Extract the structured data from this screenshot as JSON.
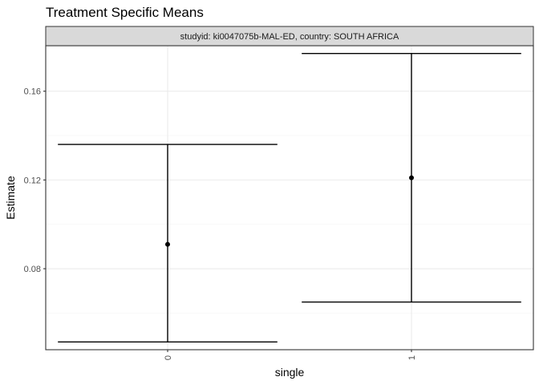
{
  "chart_data": {
    "type": "errorbar",
    "title": "Treatment Specific Means",
    "facet_label": "studyid: ki0047075b-MAL-ED, country: SOUTH AFRICA",
    "xlabel": "single",
    "ylabel": "Estimate",
    "categories": [
      "0",
      "1"
    ],
    "points": [
      {
        "x": "0",
        "estimate": 0.091,
        "lower": 0.047,
        "upper": 0.136
      },
      {
        "x": "1",
        "estimate": 0.121,
        "lower": 0.065,
        "upper": 0.177
      }
    ],
    "y_ticks": [
      0.08,
      0.12,
      0.16
    ],
    "y_tick_labels": [
      "0.08",
      "0.12",
      "0.16"
    ],
    "ylim": [
      0.0435,
      0.1805
    ],
    "grid": true,
    "colors": {
      "line": "#000000",
      "point": "#000000",
      "strip_fill": "#d9d9d9",
      "grid_major": "#ebebeb",
      "grid_minor": "#f5f5f5",
      "panel_border": "#333333"
    }
  }
}
